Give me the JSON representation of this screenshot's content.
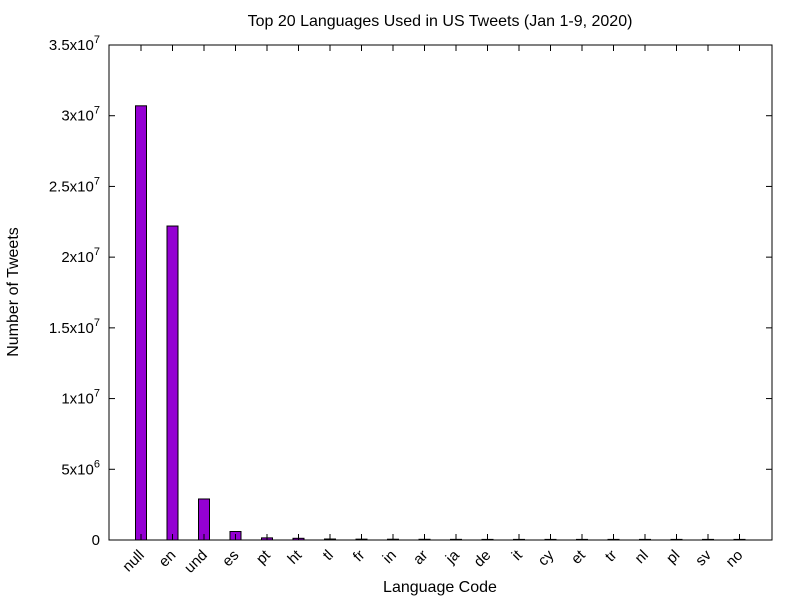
{
  "chart_data": {
    "type": "bar",
    "title": "Top 20 Languages Used in US Tweets (Jan 1-9, 2020)",
    "xlabel": "Language Code",
    "ylabel": "Number of Tweets",
    "categories": [
      "null",
      "en",
      "und",
      "es",
      "pt",
      "ht",
      "tl",
      "fr",
      "in",
      "ar",
      "ja",
      "de",
      "it",
      "cy",
      "et",
      "tr",
      "nl",
      "pl",
      "sv",
      "no"
    ],
    "values": [
      30700000,
      22200000,
      2900000,
      600000,
      150000,
      120000,
      70000,
      60000,
      55000,
      50000,
      45000,
      40000,
      30000,
      20000,
      18000,
      15000,
      12000,
      10000,
      9000,
      8000
    ],
    "ylim": [
      0,
      35000000
    ],
    "yticks": [
      {
        "value": 0,
        "mantissa": "0",
        "exp": ""
      },
      {
        "value": 5000000,
        "mantissa": "5x10",
        "exp": "6"
      },
      {
        "value": 10000000,
        "mantissa": "1x10",
        "exp": "7"
      },
      {
        "value": 15000000,
        "mantissa": "1.5x10",
        "exp": "7"
      },
      {
        "value": 20000000,
        "mantissa": "2x10",
        "exp": "7"
      },
      {
        "value": 25000000,
        "mantissa": "2.5x10",
        "exp": "7"
      },
      {
        "value": 30000000,
        "mantissa": "3x10",
        "exp": "7"
      },
      {
        "value": 35000000,
        "mantissa": "3.5x10",
        "exp": "7"
      }
    ],
    "bar_color": "#9400d3",
    "grid": false,
    "legend": "none"
  }
}
